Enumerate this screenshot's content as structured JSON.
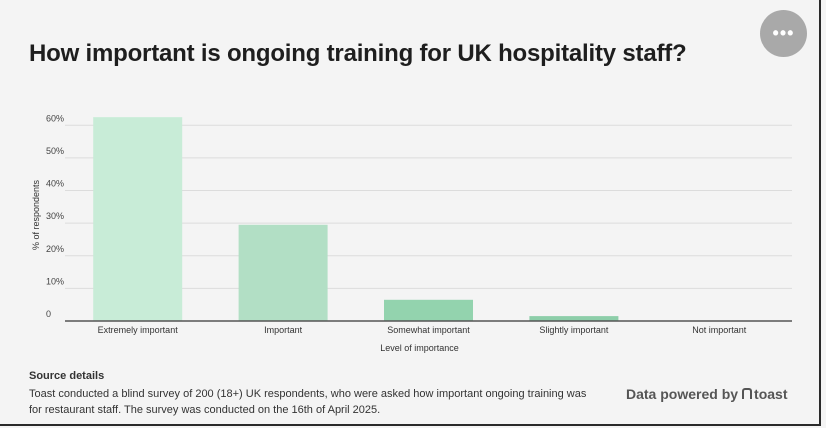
{
  "header": {
    "title": "How important is ongoing training for UK hospitality staff?"
  },
  "menu": {
    "more_label": "•••"
  },
  "chart_data": {
    "type": "bar",
    "title": "How important is ongoing training for UK hospitality staff?",
    "xlabel": "Level of importance",
    "ylabel": "% of respondents",
    "categories": [
      "Extremely important",
      "Important",
      "Somewhat important",
      "Slightly important",
      "Not important"
    ],
    "values": [
      62.5,
      29.5,
      6.5,
      1.5,
      0
    ],
    "ylim": [
      0,
      65
    ],
    "yticks": [
      0,
      10,
      20,
      30,
      40,
      50,
      60
    ],
    "ytick_labels": [
      "0",
      "10%",
      "20%",
      "30%",
      "40%",
      "50%",
      "60%"
    ],
    "colors": [
      "#c8ecd7",
      "#b2dfc5",
      "#93d3ae",
      "#8dcea9",
      "#8dcea9"
    ],
    "grid": true,
    "legend": "none"
  },
  "footer": {
    "source_title": "Source details",
    "source_text": "Toast conducted a blind survey of 200 (18+) UK respondents, who were asked how important ongoing training was for restaurant staff. The survey was conducted on the 16th of April 2025.",
    "powered_label": "Data powered by",
    "brand_name": "toast"
  }
}
